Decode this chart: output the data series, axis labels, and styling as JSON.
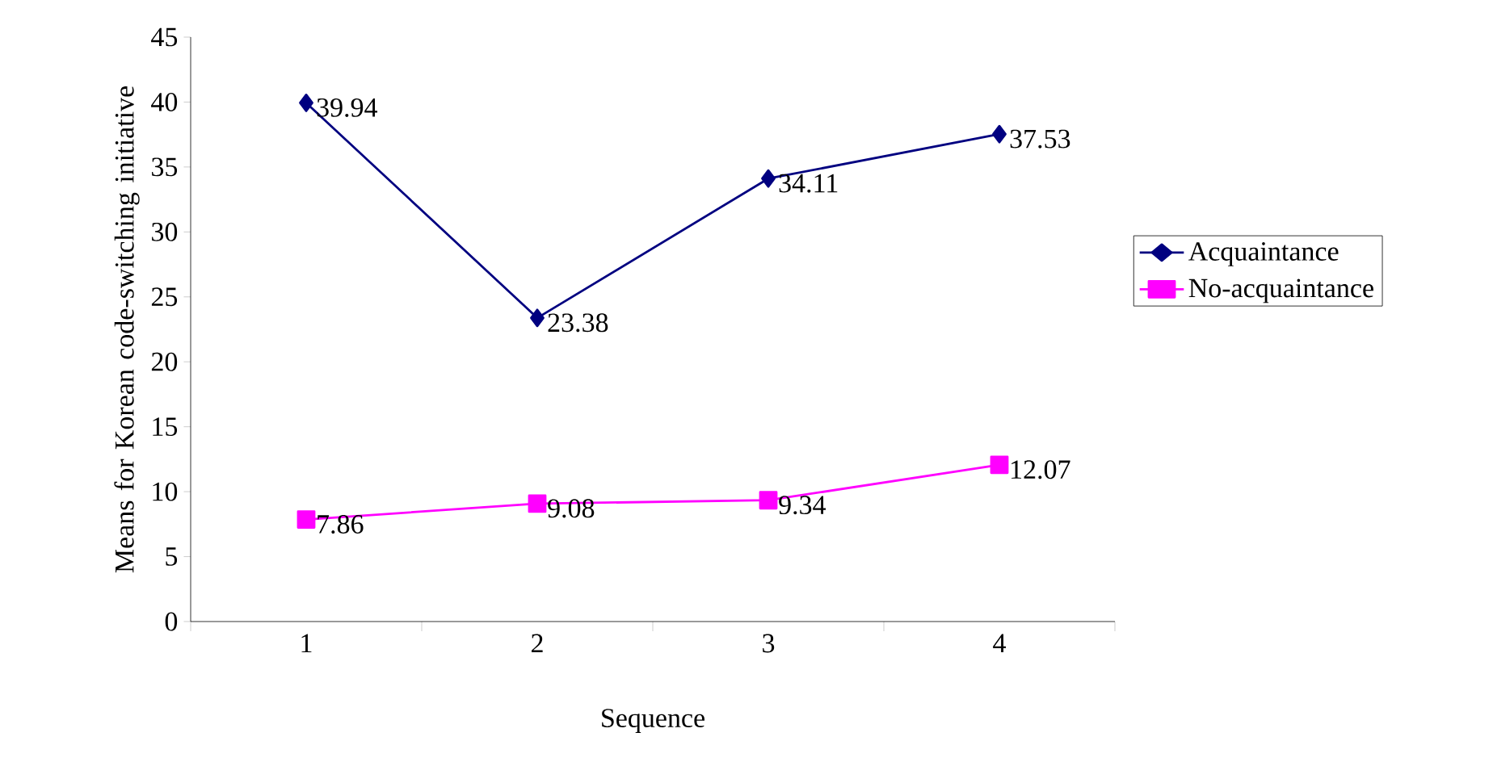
{
  "chart_data": {
    "type": "line",
    "xlabel": "Sequence",
    "ylabel": "Means for Korean code-switching initiative",
    "categories": [
      "1",
      "2",
      "3",
      "4"
    ],
    "series": [
      {
        "name": "Acquaintance",
        "color": "#000080",
        "marker": "diamond",
        "values": [
          39.94,
          23.38,
          34.11,
          37.53
        ]
      },
      {
        "name": "No-acquaintance",
        "color": "#ff00ff",
        "marker": "square",
        "values": [
          7.86,
          9.08,
          9.34,
          12.07
        ]
      }
    ],
    "ylim": [
      0,
      45
    ],
    "yticks": [
      0,
      5,
      10,
      15,
      20,
      25,
      30,
      35,
      40,
      45
    ],
    "data_labels": true,
    "legend": "right",
    "grid": false
  }
}
